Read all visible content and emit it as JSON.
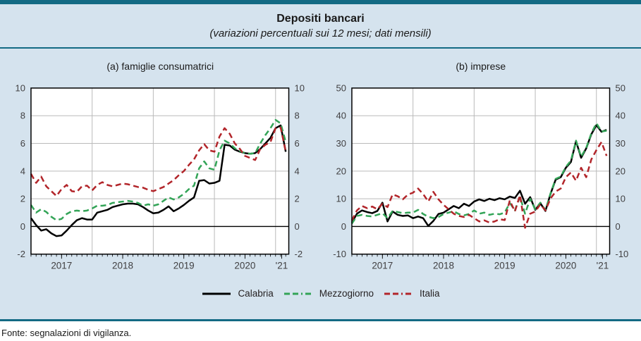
{
  "header": {
    "title": "Depositi bancari",
    "subtitle": "(variazioni percentuali sui 12 mesi; dati mensili)"
  },
  "footer": {
    "source": "Fonte: segnalazioni di vigilanza."
  },
  "colors": {
    "background": "#d5e3ee",
    "rule": "#136a84",
    "plot_background": "#ffffff",
    "grid": "#bababa",
    "frame": "#000000",
    "axis_text": "#414042",
    "calabria": "#000000",
    "mezzogiorno": "#33a457",
    "italia": "#b2252a"
  },
  "legend": {
    "entries": [
      {
        "label": "Calabria",
        "color": "#000000",
        "dash": "none"
      },
      {
        "label": "Mezzogiorno",
        "color": "#33a457",
        "dash": "8 5"
      },
      {
        "label": "Italia",
        "color": "#b2252a",
        "dash": "8 5"
      }
    ]
  },
  "chart_data": [
    {
      "type": "line",
      "title": "(a) famiglie consumatrici",
      "x_unit": "month",
      "x_start": "2017-01",
      "x_end": "2021-03",
      "n_months": 51,
      "x_total_months": 50.6,
      "ylim": [
        -2,
        10
      ],
      "ytick_step": 2,
      "grid": true,
      "year_grid_months": [
        12,
        24,
        36,
        48
      ],
      "year_labels": [
        {
          "label": "2017",
          "m": 6
        },
        {
          "label": "2018",
          "m": 18
        },
        {
          "label": "2019",
          "m": 30
        },
        {
          "label": "2020",
          "m": 42
        },
        {
          "label": "'21",
          "m": 49.2
        }
      ],
      "series": [
        {
          "name": "Calabria",
          "color": "#000000",
          "dash": "none",
          "values": [
            0.6,
            0.1,
            -0.3,
            -0.2,
            -0.5,
            -0.7,
            -0.65,
            -0.3,
            0.1,
            0.45,
            0.6,
            0.5,
            0.5,
            1.0,
            1.1,
            1.2,
            1.4,
            1.5,
            1.6,
            1.65,
            1.65,
            1.6,
            1.4,
            1.15,
            0.95,
            1.0,
            1.2,
            1.45,
            1.1,
            1.3,
            1.55,
            1.85,
            2.1,
            3.3,
            3.35,
            3.1,
            3.15,
            3.3,
            5.9,
            5.85,
            5.55,
            5.4,
            5.3,
            5.25,
            5.3,
            5.6,
            6.0,
            6.4,
            7.1,
            7.3,
            5.4
          ]
        },
        {
          "name": "Mezzogiorno",
          "color": "#33a457",
          "dash": "8 5",
          "values": [
            1.55,
            1.0,
            1.25,
            1.05,
            0.7,
            0.45,
            0.55,
            0.9,
            1.1,
            1.15,
            1.1,
            1.15,
            1.3,
            1.5,
            1.5,
            1.55,
            1.7,
            1.75,
            1.8,
            1.85,
            1.8,
            1.7,
            1.5,
            1.6,
            1.5,
            1.6,
            1.85,
            2.1,
            1.95,
            2.1,
            2.35,
            2.7,
            2.95,
            4.2,
            4.7,
            4.2,
            4.1,
            5.5,
            6.2,
            6.0,
            5.65,
            5.45,
            5.3,
            5.25,
            5.3,
            6.0,
            6.6,
            7.1,
            7.7,
            7.45,
            6.1
          ]
        },
        {
          "name": "Italia",
          "color": "#b2252a",
          "dash": "8 5",
          "values": [
            3.8,
            3.15,
            3.6,
            2.9,
            2.55,
            2.2,
            2.7,
            3.0,
            2.55,
            2.5,
            2.9,
            2.95,
            2.6,
            3.0,
            3.2,
            3.0,
            2.9,
            3.0,
            3.1,
            3.05,
            2.95,
            2.85,
            2.8,
            2.65,
            2.55,
            2.7,
            2.85,
            3.1,
            3.35,
            3.7,
            4.0,
            4.45,
            4.85,
            5.5,
            5.95,
            5.5,
            5.4,
            6.5,
            7.1,
            6.7,
            6.0,
            5.6,
            5.1,
            4.95,
            4.8,
            5.6,
            5.9,
            6.1,
            7.1,
            7.15,
            5.4
          ]
        }
      ]
    },
    {
      "type": "line",
      "title": "(b) imprese",
      "x_unit": "month",
      "x_start": "2017-01",
      "x_end": "2021-03",
      "n_months": 51,
      "x_total_months": 50.6,
      "ylim": [
        -10,
        50
      ],
      "ytick_step": 10,
      "grid": true,
      "year_grid_months": [
        12,
        24,
        36,
        48
      ],
      "year_labels": [
        {
          "label": "2017",
          "m": 6
        },
        {
          "label": "2018",
          "m": 18
        },
        {
          "label": "2019",
          "m": 30
        },
        {
          "label": "2020",
          "m": 42
        },
        {
          "label": "'21",
          "m": 49.2
        }
      ],
      "series": [
        {
          "name": "Calabria",
          "color": "#000000",
          "dash": "none",
          "values": [
            1.4,
            4.6,
            5.8,
            5.2,
            4.8,
            5.6,
            8.6,
            1.8,
            5.4,
            4.2,
            3.8,
            4.0,
            3.0,
            3.6,
            3.0,
            0.2,
            2.0,
            4.5,
            5.0,
            6.2,
            7.4,
            6.6,
            8.2,
            7.4,
            9.0,
            9.8,
            9.2,
            10.0,
            9.5,
            10.2,
            9.8,
            10.8,
            10.3,
            12.9,
            8.2,
            10.6,
            6.0,
            8.4,
            5.6,
            11.8,
            16.9,
            17.8,
            21.2,
            23.3,
            30.8,
            24.8,
            28.2,
            33.3,
            36.6,
            34.2,
            34.9
          ]
        },
        {
          "name": "Mezzogiorno",
          "color": "#33a457",
          "dash": "8 5",
          "values": [
            1.0,
            3.8,
            4.2,
            3.8,
            3.6,
            4.2,
            4.8,
            3.0,
            5.6,
            5.2,
            4.8,
            5.0,
            5.0,
            6.0,
            4.5,
            3.5,
            3.0,
            3.4,
            4.5,
            5.0,
            5.5,
            4.5,
            4.0,
            4.5,
            5.8,
            4.6,
            5.0,
            4.2,
            4.6,
            4.4,
            5.0,
            8.5,
            5.8,
            10.8,
            4.6,
            10.0,
            6.2,
            8.6,
            5.9,
            12.0,
            17.2,
            18.0,
            21.5,
            23.8,
            31.0,
            25.2,
            28.4,
            33.6,
            37.3,
            34.3,
            34.6
          ]
        },
        {
          "name": "Italia",
          "color": "#b2252a",
          "dash": "8 5",
          "values": [
            2.2,
            5.8,
            7.4,
            6.6,
            7.2,
            6.2,
            8.2,
            7.0,
            11.6,
            10.9,
            9.8,
            11.5,
            12.2,
            13.7,
            11.7,
            9.0,
            12.5,
            9.8,
            7.8,
            6.2,
            4.6,
            3.8,
            3.4,
            4.2,
            3.0,
            1.8,
            2.2,
            1.4,
            1.8,
            2.6,
            2.3,
            9.4,
            5.4,
            11.3,
            -0.5,
            4.6,
            5.4,
            8.0,
            5.8,
            10.1,
            12.6,
            13.7,
            17.8,
            19.5,
            16.5,
            21.2,
            17.8,
            24.2,
            27.6,
            30.5,
            25.5
          ]
        }
      ]
    }
  ]
}
